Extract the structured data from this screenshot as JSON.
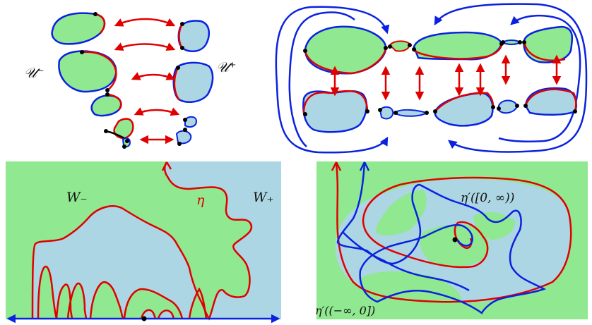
{
  "labels": {
    "u_minus": "𝒰⁻",
    "u_plus": "𝒰⁺",
    "w_minus": "W₋",
    "w_plus": "W₊",
    "eta": "η",
    "eta_prime_future": "η′([0, ∞))",
    "eta_prime_past": "η′((−∞, 0])"
  },
  "colors": {
    "green": "#90e890",
    "blue_fill": "#acd6e4",
    "red_curve": "#e00000",
    "blue_curve": "#0a22e0",
    "black": "#000000"
  }
}
